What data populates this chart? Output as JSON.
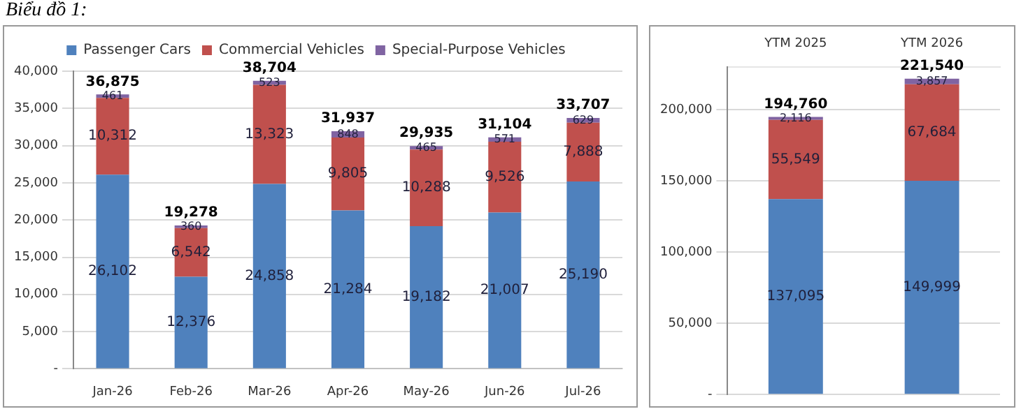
{
  "chart_data": [
    {
      "type": "bar",
      "title": "Biểu đồ 1:",
      "categories": [
        "Jan-26",
        "Feb-26",
        "Mar-26",
        "Apr-26",
        "May-26",
        "Jun-26",
        "Jul-26"
      ],
      "stacked": true,
      "series": [
        {
          "name": "Passenger Cars",
          "color": "#4f81bd",
          "values": [
            26102,
            12376,
            24858,
            21284,
            19182,
            21007,
            25190
          ],
          "value_labels": [
            "26,102",
            "12,376",
            "24,858",
            "21,284",
            "19,182",
            "21,007",
            "25,190"
          ]
        },
        {
          "name": "Commercial Vehicles",
          "color": "#c0504d",
          "values": [
            10312,
            6542,
            13323,
            9805,
            10288,
            9526,
            7888
          ],
          "value_labels": [
            "10,312",
            "6,542",
            "13,323",
            "9,805",
            "10,288",
            "9,526",
            "7,888"
          ]
        },
        {
          "name": "Special-Purpose Vehicles",
          "color": "#8064a2",
          "values": [
            461,
            360,
            523,
            848,
            465,
            571,
            629
          ],
          "value_labels": [
            "461",
            "360",
            "523",
            "848",
            "465",
            "571",
            "629"
          ]
        }
      ],
      "totals": [
        "36,875",
        "19,278",
        "38,704",
        "31,937",
        "29,935",
        "31,104",
        "33,707"
      ],
      "ylim": [
        0,
        40000
      ],
      "yticks": [
        {
          "value": 0,
          "label": "-"
        },
        {
          "value": 5000,
          "label": "5,000"
        },
        {
          "value": 10000,
          "label": "10,000"
        },
        {
          "value": 15000,
          "label": "15,000"
        },
        {
          "value": 20000,
          "label": "20,000"
        },
        {
          "value": 25000,
          "label": "25,000"
        },
        {
          "value": 30000,
          "label": "30,000"
        },
        {
          "value": 35000,
          "label": "35,000"
        },
        {
          "value": 40000,
          "label": "40,000"
        }
      ],
      "grid": "y",
      "legend": "top"
    },
    {
      "type": "bar",
      "categories": [
        "YTM 2025",
        "YTM 2026"
      ],
      "stacked": true,
      "series": [
        {
          "color": "#4f81bd",
          "values": [
            137095,
            149999
          ],
          "value_labels": [
            "137,095",
            "149,999"
          ]
        },
        {
          "color": "#c0504d",
          "values": [
            55549,
            67684
          ],
          "value_labels": [
            "55,549",
            "67,684"
          ]
        },
        {
          "color": "#8064a2",
          "values": [
            2116,
            3857
          ],
          "value_labels": [
            "2,116",
            "3,857"
          ]
        }
      ],
      "totals": [
        "194,760",
        "221,540"
      ],
      "ylim": [
        0,
        230000
      ],
      "yticks": [
        {
          "value": 0,
          "label": "-"
        },
        {
          "value": 50000,
          "label": "50,000"
        },
        {
          "value": 100000,
          "label": "100,000"
        },
        {
          "value": 150000,
          "label": "150,000"
        },
        {
          "value": 200000,
          "label": "200,000"
        }
      ],
      "grid": "y"
    }
  ]
}
